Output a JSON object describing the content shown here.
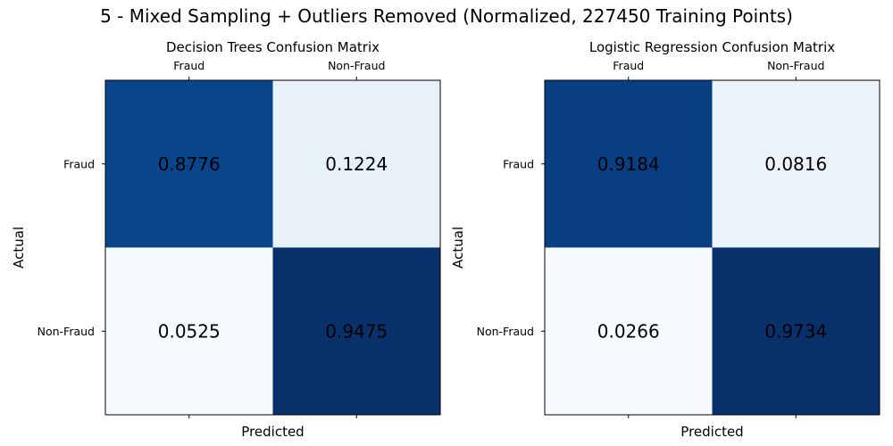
{
  "suptitle": "5 - Mixed Sampling + Outliers Removed (Normalized, 227450 Training Points)",
  "chart_data": [
    {
      "type": "heatmap",
      "title": "Decision Trees Confusion Matrix",
      "xlabel": "Predicted",
      "ylabel": "Actual",
      "x_categories": [
        "Fraud",
        "Non-Fraud"
      ],
      "y_categories": [
        "Fraud",
        "Non-Fraud"
      ],
      "values": [
        [
          0.8776,
          0.1224
        ],
        [
          0.0525,
          0.9475
        ]
      ],
      "colormap": "Blues",
      "xtick_position": "top"
    },
    {
      "type": "heatmap",
      "title": "Logistic Regression Confusion Matrix",
      "xlabel": "Predicted",
      "ylabel": "Actual",
      "x_categories": [
        "Fraud",
        "Non-Fraud"
      ],
      "y_categories": [
        "Fraud",
        "Non-Fraud"
      ],
      "values": [
        [
          0.9184,
          0.0816
        ],
        [
          0.0266,
          0.9734
        ]
      ],
      "colormap": "Blues",
      "xtick_position": "top"
    }
  ]
}
